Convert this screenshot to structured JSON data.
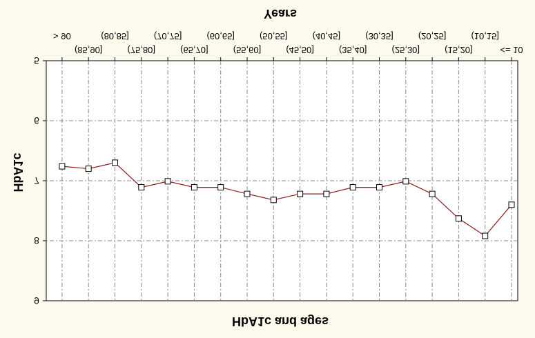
{
  "chart_data": {
    "type": "line",
    "title": "HbA1c and ages",
    "xlabel": "Years",
    "ylabel": "HbA1c",
    "categories": [
      "<= 10",
      "(10,15]",
      "(15,20]",
      "(20,25]",
      "(25,30]",
      "(30,35]",
      "(35,40]",
      "(40,45]",
      "(45,50]",
      "(50,55]",
      "(55,60]",
      "(60,65]",
      "(65,70]",
      "(70,75]",
      "(75,80]",
      "(80,85]",
      "(85,90]",
      "> 90"
    ],
    "series": [
      {
        "values": [
          7.4,
          7.92,
          7.63,
          7.22,
          7.01,
          7.11,
          7.11,
          7.22,
          7.22,
          7.32,
          7.22,
          7.11,
          7.11,
          7.01,
          7.11,
          6.7,
          6.8,
          6.76
        ]
      }
    ],
    "ylim": [
      5,
      9
    ],
    "yticks": [
      "5",
      "6",
      "7",
      "8",
      "9"
    ],
    "y_inverted": true,
    "image_mirrored": true,
    "grid": true,
    "line_color": "#8b1a1a",
    "marker_fill": "#ffffff",
    "marker_stroke": "#000000",
    "background": "#fcf9ed",
    "plot_background": "#ffffff"
  }
}
